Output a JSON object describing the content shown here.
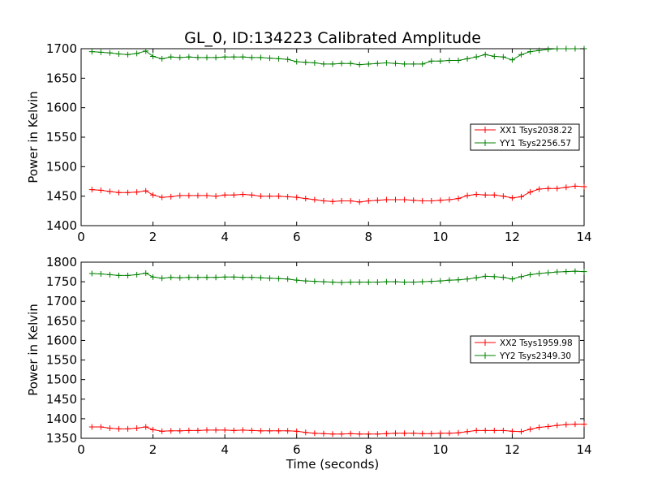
{
  "figure": {
    "title": "GL_0, ID:134223 Calibrated Amplitude",
    "xlabel": "Time (seconds)"
  },
  "chart_data": [
    {
      "type": "line",
      "title": "GL_0, ID:134223 Calibrated Amplitude",
      "xlabel": "",
      "ylabel": "Power in Kelvin",
      "xlim": [
        0,
        14
      ],
      "ylim": [
        1400,
        1700
      ],
      "xticks": [
        "0",
        "2",
        "4",
        "6",
        "8",
        "10",
        "12",
        "14"
      ],
      "yticks": [
        "1400",
        "1450",
        "1500",
        "1550",
        "1600",
        "1650",
        "1700"
      ],
      "grid": false,
      "legend_position": "right",
      "marker": "plus",
      "x": [
        0.3,
        0.55,
        0.8,
        1.05,
        1.3,
        1.55,
        1.8,
        2.0,
        2.25,
        2.5,
        2.75,
        3.0,
        3.25,
        3.5,
        3.75,
        4.0,
        4.25,
        4.5,
        4.75,
        5.0,
        5.25,
        5.5,
        5.75,
        6.0,
        6.25,
        6.5,
        6.75,
        7.0,
        7.25,
        7.5,
        7.75,
        8.0,
        8.25,
        8.5,
        8.75,
        9.0,
        9.25,
        9.5,
        9.75,
        10.0,
        10.25,
        10.5,
        10.75,
        11.0,
        11.25,
        11.5,
        11.75,
        12.0,
        12.25,
        12.5,
        12.75,
        13.0,
        13.25,
        13.5,
        13.75,
        14.0
      ],
      "series": [
        {
          "name": "XX1 Tsys2038.22",
          "color": "#ff0000",
          "values": [
            1461,
            1460,
            1458,
            1456,
            1456,
            1457,
            1459,
            1452,
            1448,
            1449,
            1451,
            1451,
            1451,
            1451,
            1450,
            1452,
            1452,
            1453,
            1452,
            1450,
            1450,
            1450,
            1449,
            1448,
            1446,
            1444,
            1442,
            1441,
            1442,
            1442,
            1440,
            1442,
            1443,
            1444,
            1444,
            1444,
            1443,
            1442,
            1442,
            1443,
            1444,
            1446,
            1451,
            1453,
            1452,
            1452,
            1450,
            1447,
            1449,
            1457,
            1462,
            1463,
            1463,
            1465,
            1467,
            1466
          ]
        },
        {
          "name": "YY1 Tsys2256.57",
          "color": "#008000",
          "values": [
            1695,
            1694,
            1693,
            1691,
            1690,
            1692,
            1696,
            1687,
            1683,
            1686,
            1685,
            1686,
            1685,
            1685,
            1685,
            1686,
            1686,
            1686,
            1685,
            1685,
            1684,
            1683,
            1682,
            1678,
            1677,
            1676,
            1674,
            1674,
            1675,
            1675,
            1673,
            1674,
            1675,
            1676,
            1675,
            1674,
            1674,
            1674,
            1679,
            1679,
            1680,
            1680,
            1683,
            1686,
            1690,
            1687,
            1686,
            1681,
            1690,
            1695,
            1697,
            1699,
            1700,
            1700,
            1700,
            1700
          ]
        }
      ]
    },
    {
      "type": "line",
      "title": "",
      "xlabel": "Time (seconds)",
      "ylabel": "Power in Kelvin",
      "xlim": [
        0,
        14
      ],
      "ylim": [
        1350,
        1800
      ],
      "xticks": [
        "0",
        "2",
        "4",
        "6",
        "8",
        "10",
        "12",
        "14"
      ],
      "yticks": [
        "1350",
        "1400",
        "1450",
        "1500",
        "1550",
        "1600",
        "1650",
        "1700",
        "1750",
        "1800"
      ],
      "grid": false,
      "legend_position": "right",
      "marker": "plus",
      "x": [
        0.3,
        0.55,
        0.8,
        1.05,
        1.3,
        1.55,
        1.8,
        2.0,
        2.25,
        2.5,
        2.75,
        3.0,
        3.25,
        3.5,
        3.75,
        4.0,
        4.25,
        4.5,
        4.75,
        5.0,
        5.25,
        5.5,
        5.75,
        6.0,
        6.25,
        6.5,
        6.75,
        7.0,
        7.25,
        7.5,
        7.75,
        8.0,
        8.25,
        8.5,
        8.75,
        9.0,
        9.25,
        9.5,
        9.75,
        10.0,
        10.25,
        10.5,
        10.75,
        11.0,
        11.25,
        11.5,
        11.75,
        12.0,
        12.25,
        12.5,
        12.75,
        13.0,
        13.25,
        13.5,
        13.75,
        14.0
      ],
      "series": [
        {
          "name": "XX2 Tsys1959.98",
          "color": "#ff0000",
          "values": [
            1379,
            1379,
            1376,
            1374,
            1374,
            1376,
            1379,
            1372,
            1368,
            1369,
            1369,
            1370,
            1370,
            1371,
            1371,
            1371,
            1370,
            1371,
            1370,
            1369,
            1369,
            1369,
            1369,
            1368,
            1365,
            1363,
            1362,
            1361,
            1361,
            1362,
            1361,
            1361,
            1361,
            1362,
            1363,
            1363,
            1363,
            1362,
            1362,
            1363,
            1363,
            1364,
            1367,
            1370,
            1370,
            1370,
            1370,
            1368,
            1367,
            1373,
            1378,
            1380,
            1383,
            1385,
            1386,
            1386
          ]
        },
        {
          "name": "YY2 Tsys2349.30",
          "color": "#008000",
          "values": [
            1771,
            1770,
            1768,
            1766,
            1766,
            1768,
            1772,
            1762,
            1759,
            1761,
            1760,
            1761,
            1761,
            1761,
            1761,
            1762,
            1762,
            1761,
            1761,
            1760,
            1759,
            1758,
            1757,
            1754,
            1752,
            1751,
            1750,
            1749,
            1748,
            1749,
            1749,
            1749,
            1749,
            1750,
            1750,
            1749,
            1749,
            1750,
            1751,
            1752,
            1754,
            1755,
            1757,
            1760,
            1764,
            1763,
            1761,
            1757,
            1763,
            1768,
            1771,
            1773,
            1775,
            1776,
            1777,
            1776
          ]
        }
      ]
    }
  ]
}
